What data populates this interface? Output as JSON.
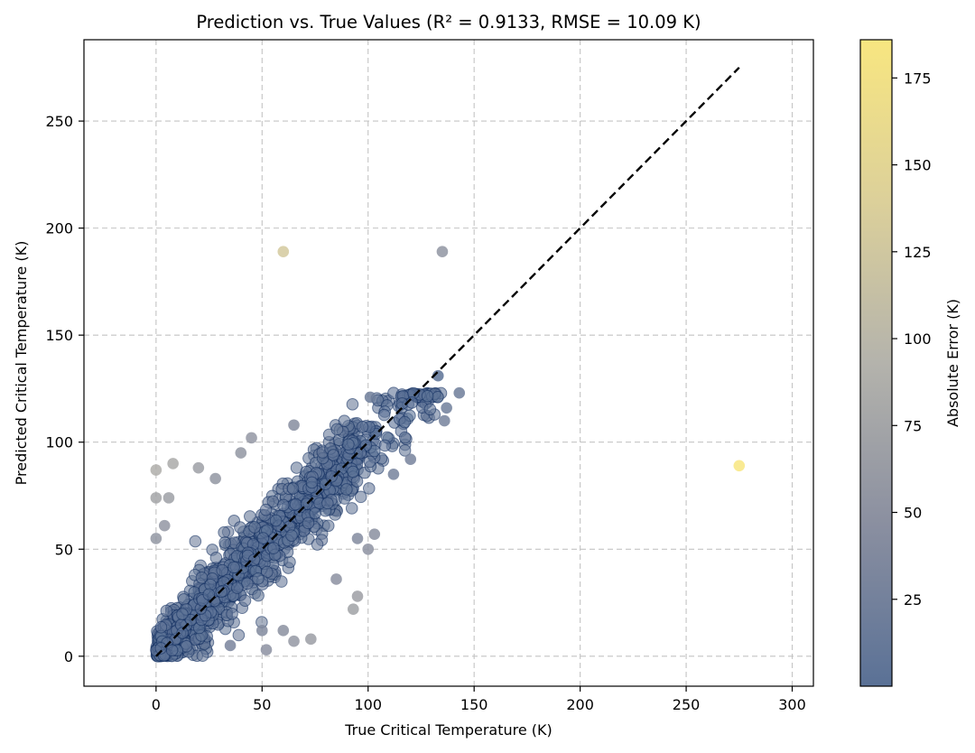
{
  "chart_data": {
    "type": "scatter",
    "title": "Prediction vs. True Values (R² = 0.9133, RMSE = 10.09 K)",
    "xlabel": "True Critical Temperature (K)",
    "ylabel": "Predicted Critical Temperature (K)",
    "xlim": [
      -34,
      310
    ],
    "ylim": [
      -14,
      288
    ],
    "x_ticks": [
      0,
      50,
      100,
      150,
      200,
      250,
      300
    ],
    "y_ticks": [
      0,
      50,
      100,
      150,
      200,
      250
    ],
    "grid": true,
    "reference_line": {
      "style": "dashed",
      "color": "#000000",
      "from": [
        0,
        0
      ],
      "to": [
        275,
        275
      ]
    },
    "colorbar": {
      "label": "Absolute Error (K)",
      "range": [
        0,
        186
      ],
      "ticks": [
        25,
        50,
        75,
        100,
        125,
        150,
        175
      ],
      "colors": [
        "#5a7196",
        "#8a8fa0",
        "#b4b3ac",
        "#dcd09a",
        "#f8e680"
      ]
    },
    "points": [
      {
        "x": 60,
        "y": 189,
        "error": 129
      },
      {
        "x": 135,
        "y": 189,
        "error": 54
      },
      {
        "x": 275,
        "y": 89,
        "error": 186
      },
      {
        "x": 0,
        "y": 87,
        "error": 87
      },
      {
        "x": 8,
        "y": 90,
        "error": 82
      },
      {
        "x": 0,
        "y": 74,
        "error": 74
      },
      {
        "x": 6,
        "y": 74,
        "error": 68
      },
      {
        "x": 0,
        "y": 55,
        "error": 55
      },
      {
        "x": 4,
        "y": 61,
        "error": 57
      },
      {
        "x": 20,
        "y": 88,
        "error": 68
      },
      {
        "x": 28,
        "y": 83,
        "error": 55
      },
      {
        "x": 45,
        "y": 102,
        "error": 57
      },
      {
        "x": 65,
        "y": 108,
        "error": 43
      },
      {
        "x": 40,
        "y": 95,
        "error": 55
      },
      {
        "x": 52,
        "y": 3,
        "error": 49
      },
      {
        "x": 73,
        "y": 8,
        "error": 65
      },
      {
        "x": 65,
        "y": 7,
        "error": 58
      },
      {
        "x": 50,
        "y": 12,
        "error": 38
      },
      {
        "x": 60,
        "y": 12,
        "error": 48
      },
      {
        "x": 35,
        "y": 5,
        "error": 30
      },
      {
        "x": 95,
        "y": 28,
        "error": 67
      },
      {
        "x": 93,
        "y": 22,
        "error": 71
      },
      {
        "x": 85,
        "y": 36,
        "error": 49
      },
      {
        "x": 100,
        "y": 50,
        "error": 50
      },
      {
        "x": 103,
        "y": 57,
        "error": 46
      },
      {
        "x": 95,
        "y": 55,
        "error": 40
      },
      {
        "x": 143,
        "y": 123,
        "error": 20
      },
      {
        "x": 137,
        "y": 116,
        "error": 21
      },
      {
        "x": 136,
        "y": 110,
        "error": 26
      },
      {
        "x": 133,
        "y": 131,
        "error": 2
      },
      {
        "x": 101,
        "y": 121,
        "error": 20
      },
      {
        "x": 120,
        "y": 92,
        "error": 28
      },
      {
        "x": 112,
        "y": 85,
        "error": 27
      }
    ]
  }
}
